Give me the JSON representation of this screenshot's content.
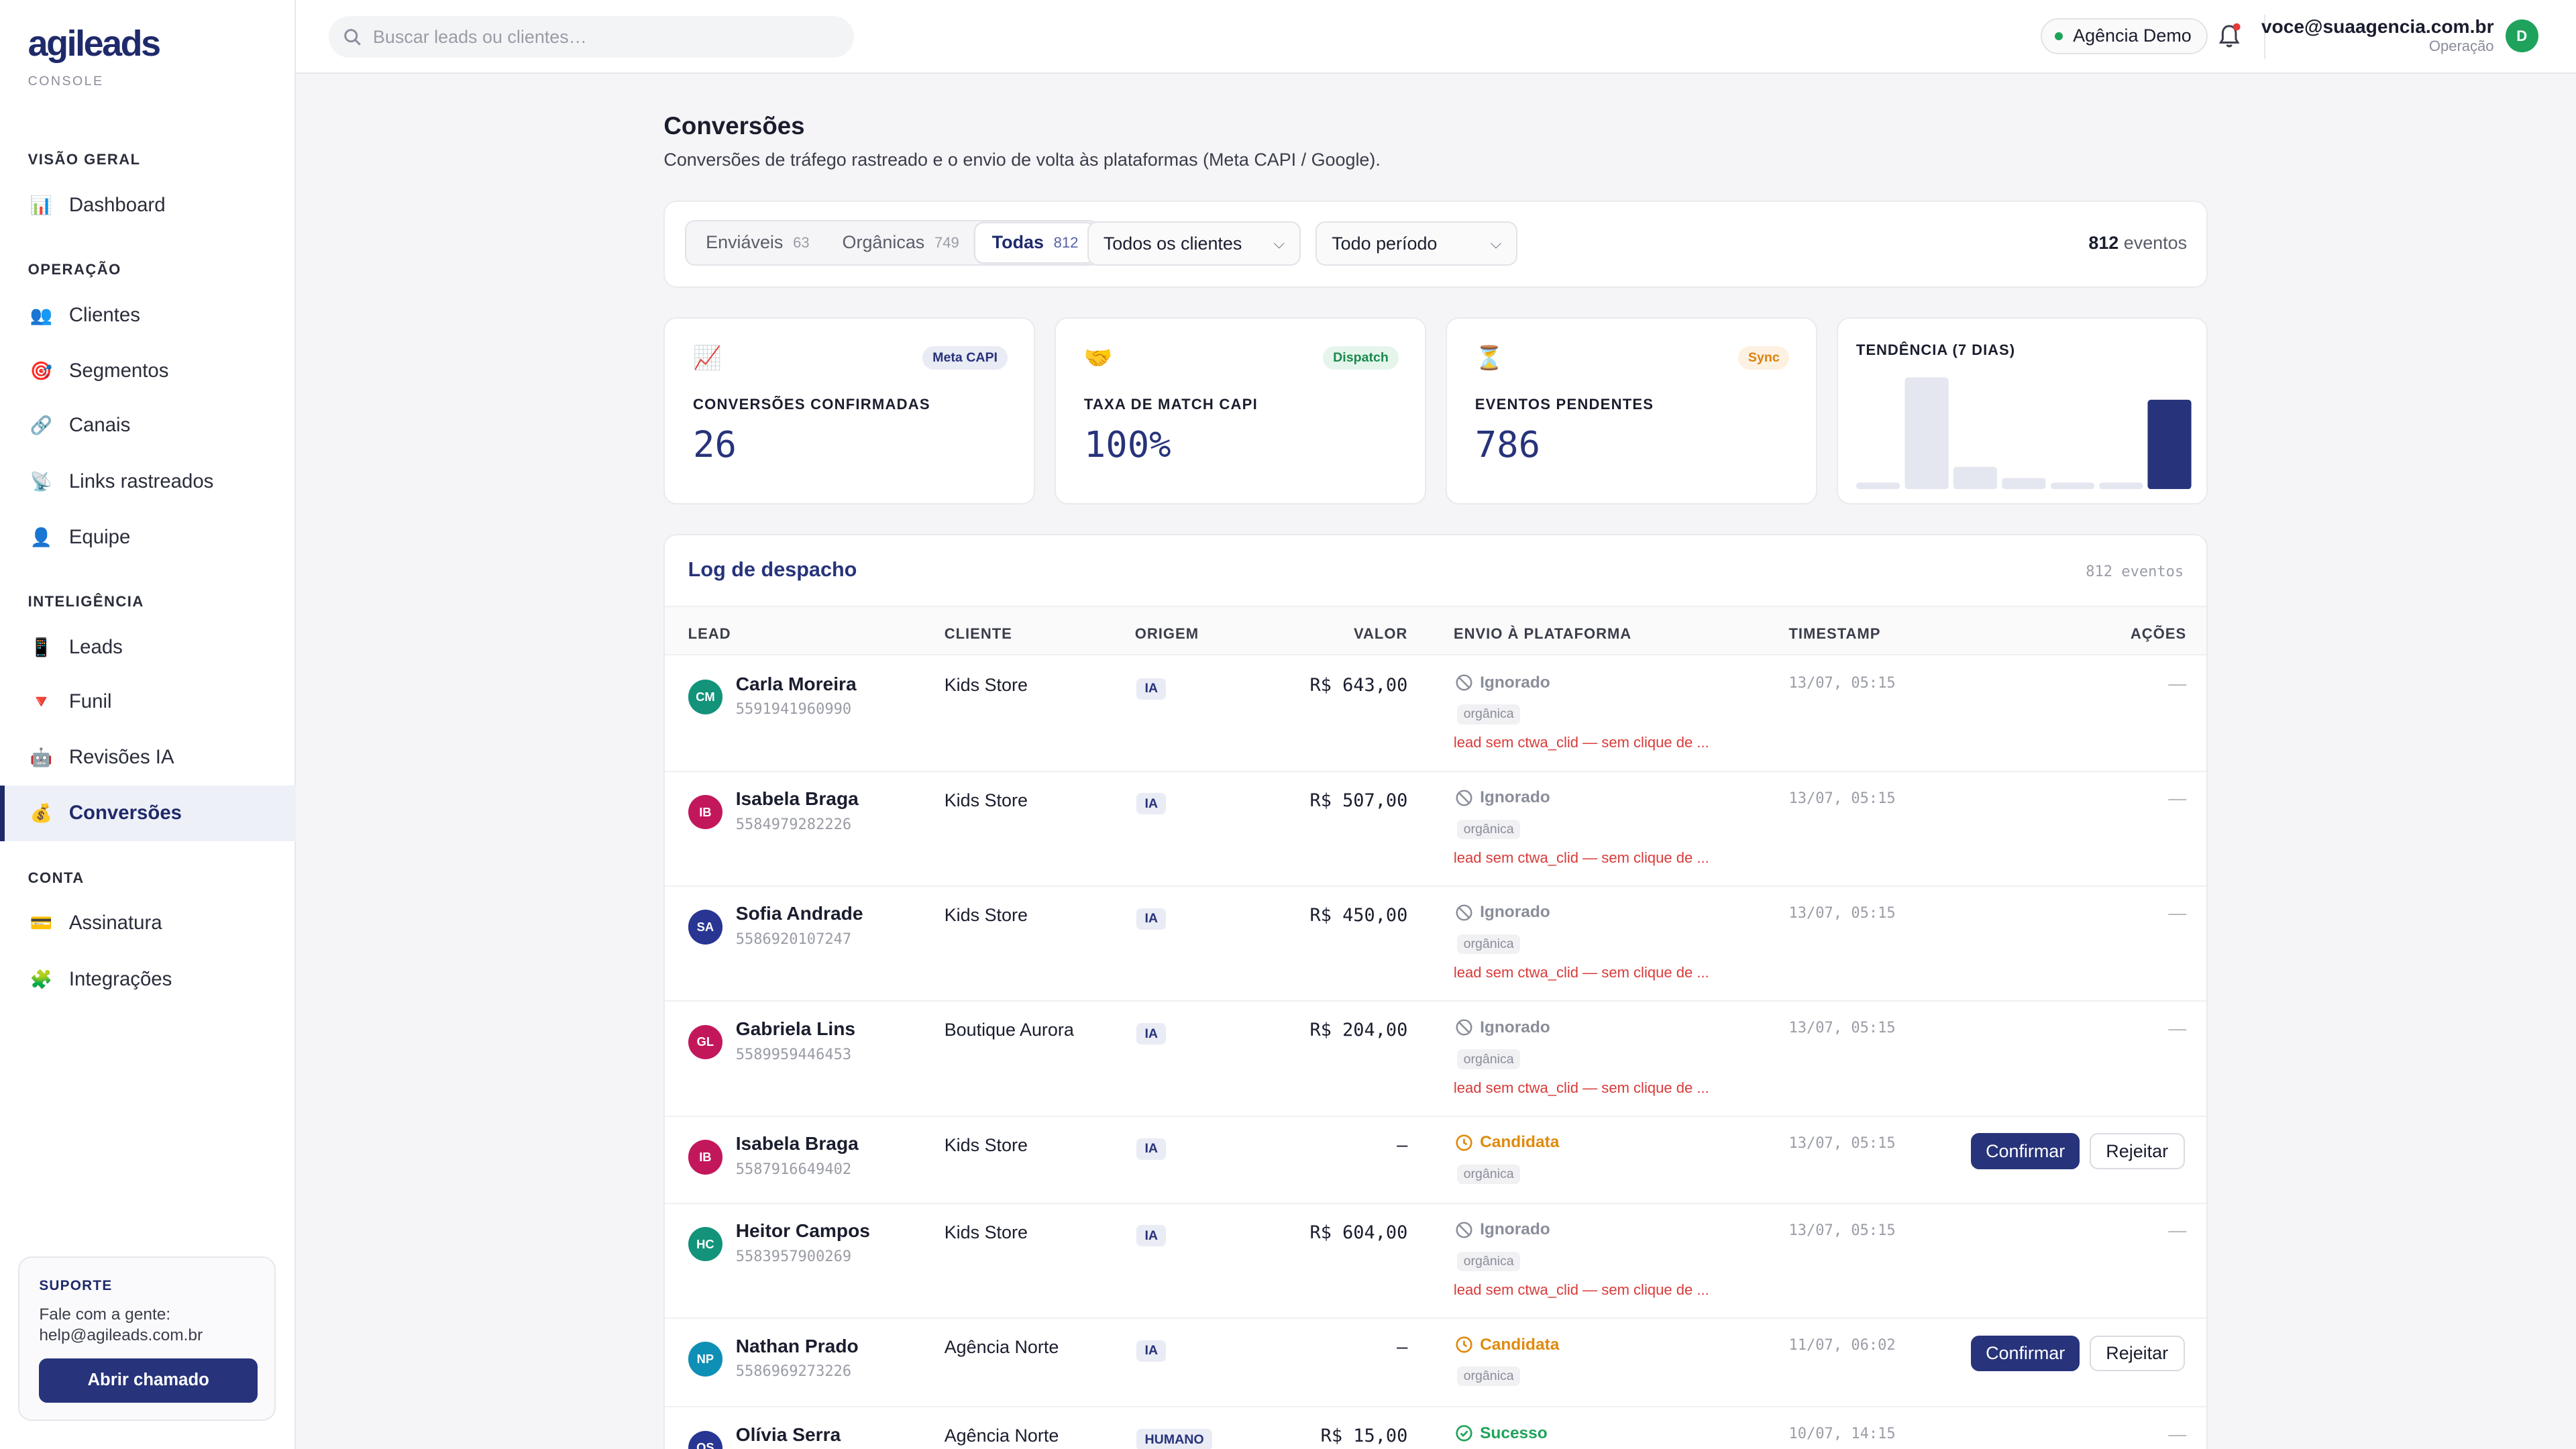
{
  "brand": {
    "logo": "agileads",
    "sub": "CONSOLE"
  },
  "nav": {
    "sections": [
      "VISÃO GERAL",
      "OPERAÇÃO",
      "INTELIGÊNCIA",
      "CONTA"
    ],
    "items": [
      {
        "label": "Dashboard",
        "icon": "📊"
      },
      {
        "label": "Clientes",
        "icon": "👥"
      },
      {
        "label": "Segmentos",
        "icon": "🎯"
      },
      {
        "label": "Canais",
        "icon": "🔗"
      },
      {
        "label": "Links rastreados",
        "icon": "📡"
      },
      {
        "label": "Equipe",
        "icon": "👤"
      },
      {
        "label": "Leads",
        "icon": "📱"
      },
      {
        "label": "Funil",
        "icon": "🔻"
      },
      {
        "label": "Revisões IA",
        "icon": "🤖"
      },
      {
        "label": "Conversões",
        "icon": "💰"
      },
      {
        "label": "Assinatura",
        "icon": "💳"
      },
      {
        "label": "Integrações",
        "icon": "🧩"
      }
    ]
  },
  "support": {
    "title": "SUPORTE",
    "line1": "Fale com a gente:",
    "line2": "help@agileads.com.br",
    "button": "Abrir chamado"
  },
  "topbar": {
    "search_placeholder": "Buscar leads ou clientes…",
    "agency": "Agência Demo",
    "user_email": "voce@suaagencia.com.br",
    "user_role": "Operação",
    "user_initial": "D"
  },
  "page": {
    "title": "Conversões",
    "subtitle": "Conversões de tráfego rastreado e o envio de volta às plataformas (Meta CAPI / Google)."
  },
  "filters": {
    "tabs": [
      {
        "label": "Enviáveis",
        "count": "63"
      },
      {
        "label": "Orgânicas",
        "count": "749"
      },
      {
        "label": "Todas",
        "count": "812"
      }
    ],
    "client_select": "Todos os clientes",
    "period_select": "Todo período",
    "total_count": "812",
    "total_label": "eventos"
  },
  "stats": [
    {
      "emoji": "📈",
      "badge": "Meta CAPI",
      "label": "CONVERSÕES CONFIRMADAS",
      "value": "26"
    },
    {
      "emoji": "🤝",
      "badge": "Dispatch",
      "label": "TAXA DE MATCH CAPI",
      "value": "100%"
    },
    {
      "emoji": "⏳",
      "badge": "Sync",
      "label": "EVENTOS PENDENTES",
      "value": "786"
    }
  ],
  "trend": {
    "label": "TENDÊNCIA (7 DIAS)",
    "values": [
      1,
      20,
      4,
      2,
      1,
      1,
      16
    ],
    "colors": {
      "bar": "#e4e6f0",
      "highlight": "#27337a"
    }
  },
  "log": {
    "title": "Log de despacho",
    "count": "812 eventos",
    "headers": [
      "LEAD",
      "CLIENTE",
      "ORIGEM",
      "VALOR",
      "ENVIO À PLATAFORMA",
      "TIMESTAMP",
      "AÇÕES"
    ],
    "rows": [
      {
        "initials": "CM",
        "color": "#12937a",
        "name": "Carla Moreira",
        "phone": "5591941960990",
        "client": "Kids Store",
        "origin": "IA",
        "value": "R$ 643,00",
        "status": "Ignorado",
        "tag": "orgânica",
        "reason": "lead sem ctwa_clid — sem clique de ...",
        "ts": "13/07, 05:15",
        "action": "—"
      },
      {
        "initials": "IB",
        "color": "#c2185b",
        "name": "Isabela Braga",
        "phone": "5584979282226",
        "client": "Kids Store",
        "origin": "IA",
        "value": "R$ 507,00",
        "status": "Ignorado",
        "tag": "orgânica",
        "reason": "lead sem ctwa_clid — sem clique de ...",
        "ts": "13/07, 05:15",
        "action": "—"
      },
      {
        "initials": "SA",
        "color": "#283593",
        "name": "Sofia Andrade",
        "phone": "5586920107247",
        "client": "Kids Store",
        "origin": "IA",
        "value": "R$ 450,00",
        "status": "Ignorado",
        "tag": "orgânica",
        "reason": "lead sem ctwa_clid — sem clique de ...",
        "ts": "13/07, 05:15",
        "action": "—"
      },
      {
        "initials": "GL",
        "color": "#c2185b",
        "name": "Gabriela Lins",
        "phone": "5589959446453",
        "client": "Boutique Aurora",
        "origin": "IA",
        "value": "R$ 204,00",
        "status": "Ignorado",
        "tag": "orgânica",
        "reason": "lead sem ctwa_clid — sem clique de ...",
        "ts": "13/07, 05:15",
        "action": "—"
      },
      {
        "initials": "IB",
        "color": "#c2185b",
        "name": "Isabela Braga",
        "phone": "5587916649402",
        "client": "Kids Store",
        "origin": "IA",
        "value": "—",
        "status": "Candidata",
        "tag": "orgânica",
        "reason": "",
        "ts": "13/07, 05:15",
        "confirm": "Confirmar",
        "reject": "Rejeitar"
      },
      {
        "initials": "HC",
        "color": "#12937a",
        "name": "Heitor Campos",
        "phone": "5583957900269",
        "client": "Kids Store",
        "origin": "IA",
        "value": "R$ 604,00",
        "status": "Ignorado",
        "tag": "orgânica",
        "reason": "lead sem ctwa_clid — sem clique de ...",
        "ts": "13/07, 05:15",
        "action": "—"
      },
      {
        "initials": "NP",
        "color": "#0e8fb5",
        "name": "Nathan Prado",
        "phone": "5586969273226",
        "client": "Agência Norte",
        "origin": "IA",
        "value": "—",
        "status": "Candidata",
        "tag": "orgânica",
        "reason": "",
        "ts": "11/07, 06:02",
        "confirm": "Confirmar",
        "reject": "Rejeitar"
      },
      {
        "initials": "OS",
        "color": "#283593",
        "name": "Olívia Serra",
        "phone": "",
        "client": "Agência Norte",
        "origin": "HUMANO",
        "value": "R$ 15,00",
        "status": "Sucesso",
        "tag": "",
        "reason": "",
        "ts": "10/07, 14:15",
        "action": "—"
      }
    ]
  },
  "colors": {
    "accent": "#27337a",
    "ignored": "#8a8d9a",
    "candidate": "#e08a10",
    "success": "#1fa35c",
    "error": "#d93a3a"
  }
}
